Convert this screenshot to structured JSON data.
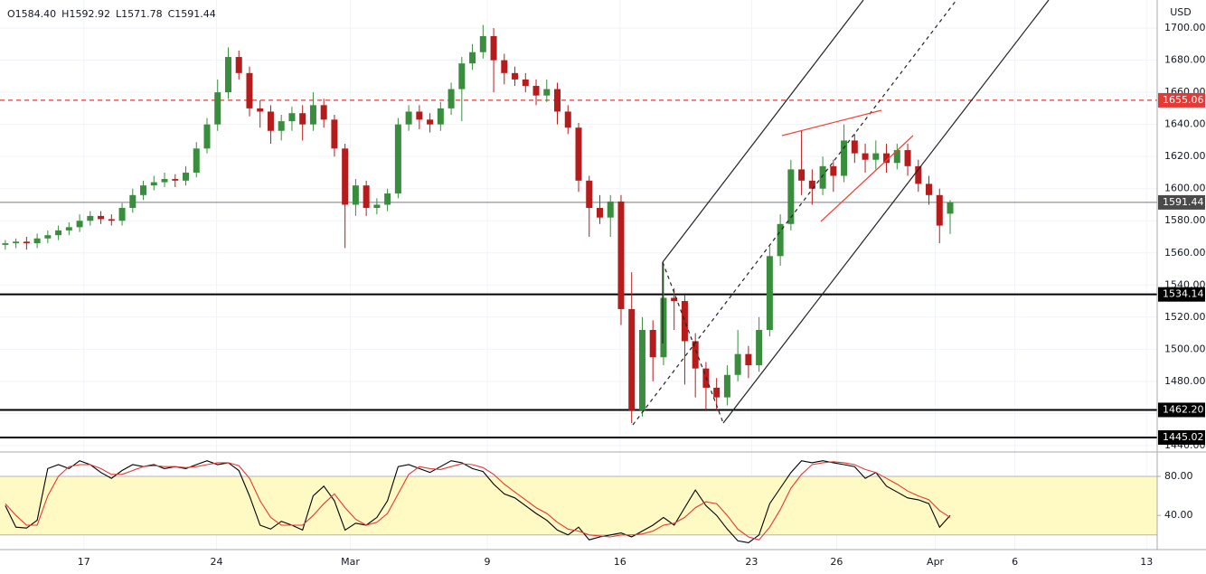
{
  "chart_data": {
    "type": "candlestick",
    "currency": "USD",
    "header": [
      {
        "label": "O",
        "value": "1584.40"
      },
      {
        "label": "H",
        "value": "1592.92"
      },
      {
        "label": "L",
        "value": "1571.78"
      },
      {
        "label": "C",
        "value": "1591.44"
      }
    ],
    "x": [
      0,
      1,
      2,
      3,
      4,
      5,
      6,
      7,
      8,
      9,
      10,
      11,
      12,
      13,
      14,
      15,
      16,
      17,
      18,
      19,
      20,
      21,
      22,
      23,
      24,
      25,
      26,
      27,
      28,
      29,
      30,
      31,
      32,
      33,
      34,
      35,
      36,
      37,
      38,
      39,
      40,
      41,
      42,
      43,
      44,
      45,
      46,
      47,
      48,
      49,
      50,
      51,
      52,
      53,
      54,
      55,
      56,
      57,
      58,
      59,
      60,
      61,
      62,
      63,
      64,
      65,
      66,
      67,
      68,
      69,
      70,
      71,
      72,
      73,
      74,
      75,
      76,
      77,
      78,
      79,
      80,
      81,
      82,
      83,
      84,
      85,
      86,
      87,
      88,
      89
    ],
    "xlim": [
      -0.5,
      108.5
    ],
    "xticks": [
      {
        "value": 7.4,
        "label": "17"
      },
      {
        "value": 19.9,
        "label": "24"
      },
      {
        "value": 32.5,
        "label": "Mar"
      },
      {
        "value": 45.4,
        "label": "9"
      },
      {
        "value": 57.9,
        "label": "16"
      },
      {
        "value": 70.3,
        "label": "23"
      },
      {
        "value": 78.3,
        "label": "26"
      },
      {
        "value": 87.6,
        "label": "Apr"
      },
      {
        "value": 95.1,
        "label": "6"
      },
      {
        "value": 107.5,
        "label": "13"
      }
    ],
    "ylim": [
      1436,
      1717.5
    ],
    "yticks": [
      {
        "value": 1440,
        "label": "1440.00"
      },
      {
        "value": 1460,
        "label": "1460.00"
      },
      {
        "value": 1480,
        "label": "1480.00"
      },
      {
        "value": 1500,
        "label": "1500.00"
      },
      {
        "value": 1520,
        "label": "1520.00"
      },
      {
        "value": 1540,
        "label": "1540.00"
      },
      {
        "value": 1560,
        "label": "1560.00"
      },
      {
        "value": 1580,
        "label": "1580.00"
      },
      {
        "value": 1600,
        "label": "1600.00"
      },
      {
        "value": 1620,
        "label": "1620.00"
      },
      {
        "value": 1640,
        "label": "1640.00"
      },
      {
        "value": 1660,
        "label": "1660.00"
      },
      {
        "value": 1680,
        "label": "1680.00"
      },
      {
        "value": 1700,
        "label": "1700.00"
      }
    ],
    "up_color": "#388e3c",
    "down_color": "#b71c1c",
    "open": [
      1565,
      1566,
      1567,
      1566,
      1569,
      1571,
      1574,
      1576,
      1580,
      1583,
      1581,
      1580,
      1588,
      1596,
      1602,
      1604,
      1606,
      1605,
      1610,
      1625,
      1640,
      1660,
      1682,
      1672,
      1650,
      1648,
      1636,
      1642,
      1647,
      1640,
      1652,
      1643,
      1625,
      1590,
      1602,
      1588,
      1590,
      1597,
      1640,
      1648,
      1643,
      1640,
      1650,
      1662,
      1678,
      1685,
      1695,
      1680,
      1672,
      1668,
      1664,
      1658,
      1662,
      1648,
      1638,
      1605,
      1588,
      1582,
      1592,
      1525,
      1462,
      1512,
      1495,
      1532,
      1530,
      1505,
      1488,
      1476,
      1470,
      1484,
      1497,
      1490,
      1512,
      1558,
      1578,
      1612,
      1605,
      1600,
      1614,
      1608,
      1630,
      1622,
      1618,
      1622,
      1616,
      1624,
      1614,
      1603,
      1596,
      1584.4
    ],
    "high": [
      1568,
      1569,
      1570,
      1572,
      1574,
      1577,
      1579,
      1584,
      1586,
      1586,
      1584,
      1591,
      1600,
      1605,
      1608,
      1610,
      1609,
      1614,
      1629,
      1644,
      1668,
      1688,
      1686,
      1676,
      1655,
      1652,
      1646,
      1651,
      1652,
      1660,
      1656,
      1646,
      1628,
      1606,
      1605,
      1594,
      1600,
      1644,
      1652,
      1652,
      1647,
      1654,
      1666,
      1682,
      1690,
      1702,
      1700,
      1684,
      1676,
      1672,
      1668,
      1668,
      1666,
      1652,
      1641,
      1608,
      1596,
      1596,
      1596,
      1548,
      1520,
      1518,
      1552,
      1538,
      1534,
      1510,
      1492,
      1482,
      1490,
      1512,
      1502,
      1520,
      1564,
      1584,
      1618,
      1636,
      1612,
      1620,
      1618,
      1640,
      1634,
      1628,
      1630,
      1628,
      1628,
      1628,
      1618,
      1608,
      1600,
      1592.92
    ],
    "low": [
      1562,
      1563,
      1562,
      1563,
      1566,
      1568,
      1571,
      1573,
      1577,
      1578,
      1577,
      1577,
      1585,
      1593,
      1599,
      1601,
      1601,
      1602,
      1607,
      1622,
      1636,
      1656,
      1668,
      1645,
      1638,
      1628,
      1630,
      1636,
      1630,
      1636,
      1638,
      1620,
      1563,
      1583,
      1583,
      1584,
      1586,
      1594,
      1636,
      1637,
      1635,
      1636,
      1646,
      1642,
      1674,
      1681,
      1660,
      1665,
      1664,
      1660,
      1652,
      1654,
      1640,
      1634,
      1598,
      1570,
      1578,
      1570,
      1515,
      1454,
      1458,
      1480,
      1490,
      1512,
      1478,
      1470,
      1462,
      1462,
      1465,
      1480,
      1482,
      1486,
      1508,
      1552,
      1574,
      1596,
      1590,
      1596,
      1598,
      1604,
      1616,
      1610,
      1612,
      1610,
      1612,
      1608,
      1598,
      1590,
      1566,
      1571.78
    ],
    "close": [
      1566,
      1567,
      1566,
      1569,
      1571,
      1574,
      1576,
      1580,
      1583,
      1581,
      1580,
      1588,
      1596,
      1602,
      1604,
      1606,
      1605,
      1610,
      1625,
      1640,
      1660,
      1682,
      1672,
      1650,
      1648,
      1636,
      1642,
      1647,
      1640,
      1652,
      1643,
      1625,
      1590,
      1602,
      1588,
      1590,
      1597,
      1640,
      1648,
      1643,
      1640,
      1650,
      1662,
      1678,
      1685,
      1695,
      1680,
      1672,
      1668,
      1664,
      1658,
      1662,
      1648,
      1638,
      1605,
      1588,
      1582,
      1592,
      1525,
      1462,
      1512,
      1495,
      1532,
      1530,
      1505,
      1488,
      1476,
      1470,
      1484,
      1497,
      1490,
      1512,
      1558,
      1578,
      1612,
      1605,
      1600,
      1614,
      1608,
      1630,
      1622,
      1618,
      1622,
      1616,
      1624,
      1614,
      1603,
      1596,
      1577,
      1591.44
    ],
    "levels": [
      {
        "value": 1655.06,
        "label": "1655.06",
        "color": "#e53935",
        "dashed": true
      },
      {
        "value": 1591.44,
        "label": "1591.44",
        "color": "#787b86",
        "dashed": false
      },
      {
        "value": 1534.14,
        "label": "1534.14",
        "color": "#000000",
        "dashed": false
      },
      {
        "value": 1462.2,
        "label": "1462.20",
        "color": "#000000",
        "dashed": false
      },
      {
        "value": 1445.02,
        "label": "1445.02",
        "color": "#000000",
        "dashed": false
      }
    ],
    "indicator": {
      "ylim": [
        5,
        105
      ],
      "yticks": [
        {
          "value": 40,
          "label": "40.00"
        },
        {
          "value": 80,
          "label": "80.00"
        }
      ],
      "band": [
        20,
        80
      ],
      "band_color": "#fff9c4",
      "series": [
        {
          "color": "#000000",
          "values": [
            50,
            28,
            27,
            35,
            88,
            92,
            88,
            96,
            92,
            84,
            78,
            86,
            92,
            90,
            92,
            88,
            90,
            88,
            92,
            96,
            92,
            94,
            86,
            60,
            30,
            26,
            34,
            30,
            25,
            60,
            70,
            55,
            25,
            32,
            30,
            38,
            55,
            90,
            92,
            88,
            84,
            90,
            96,
            94,
            88,
            85,
            72,
            62,
            58,
            50,
            42,
            35,
            25,
            20,
            28,
            15,
            18,
            20,
            22,
            18,
            24,
            30,
            38,
            30,
            48,
            66,
            50,
            40,
            26,
            14,
            12,
            20,
            52,
            68,
            84,
            96,
            94,
            96,
            94,
            92,
            90,
            78,
            84,
            70,
            64,
            58,
            56,
            52,
            28,
            40
          ]
        },
        {
          "color": "#e53935",
          "values": [
            52,
            40,
            30,
            30,
            60,
            80,
            90,
            92,
            92,
            88,
            82,
            82,
            86,
            90,
            91,
            90,
            90,
            89,
            90,
            92,
            94,
            94,
            91,
            78,
            55,
            38,
            30,
            30,
            30,
            40,
            52,
            62,
            48,
            36,
            30,
            33,
            42,
            62,
            82,
            90,
            88,
            87,
            90,
            93,
            92,
            89,
            82,
            72,
            64,
            56,
            48,
            42,
            33,
            26,
            24,
            20,
            19,
            18,
            20,
            20,
            21,
            24,
            30,
            32,
            38,
            48,
            54,
            52,
            40,
            26,
            18,
            15,
            28,
            46,
            68,
            82,
            92,
            94,
            95,
            94,
            92,
            87,
            84,
            78,
            72,
            65,
            60,
            56,
            45,
            38
          ]
        }
      ]
    }
  }
}
